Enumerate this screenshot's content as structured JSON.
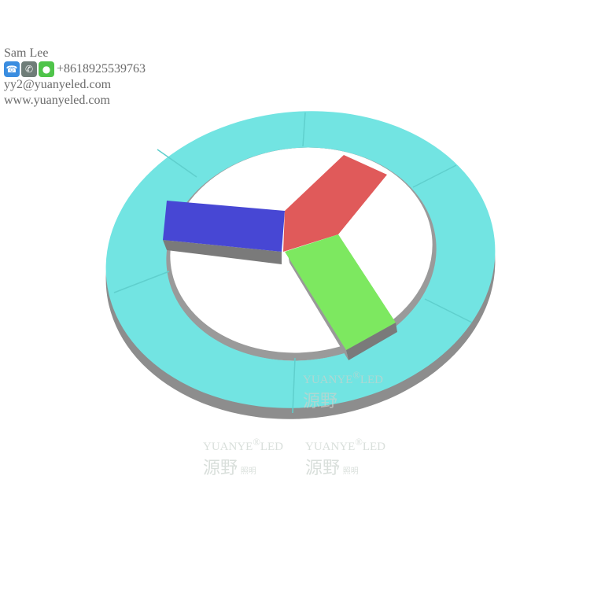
{
  "contact": {
    "name": "Sam Lee",
    "phone": "+8618925539763",
    "email": "yy2@yuanyeled.com",
    "website": "www.yuanyeled.com",
    "icons": [
      "phone-icon",
      "whatsapp-icon",
      "wechat-icon"
    ]
  },
  "watermark": {
    "brand": "YUANYE®LED",
    "chinese": "源野",
    "sub": "照明"
  },
  "colors": {
    "ring": "#72e4e2",
    "blue": "#4747d4",
    "red": "#e05a5a",
    "green": "#7de860",
    "side": "#8a8a8a"
  }
}
